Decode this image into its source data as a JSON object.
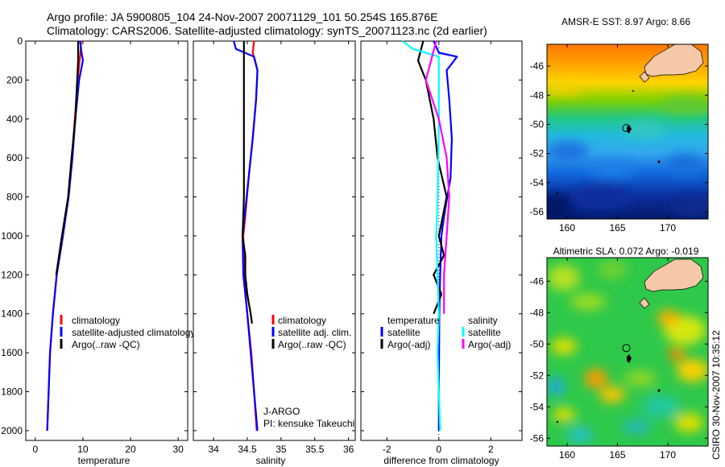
{
  "header": {
    "line1": "Argo profile: JA 5900805_104 24-Nov-2007 20071129_101 50.254S 165.876E",
    "line2": "Climatology: CARS2006. Satellite-adjusted climatology: synTS_20071123.nc (2d earlier)"
  },
  "credit": "CSIRO 30-Nov-2007 10:35:12",
  "colors": {
    "red": "#ff0000",
    "blue": "#0000ff",
    "black": "#000000",
    "cyan": "#00ffff",
    "magenta": "#ff00ff"
  },
  "chart_data": [
    {
      "type": "line",
      "xlabel": "temperature",
      "ylabel": "",
      "xlim": [
        -2,
        32
      ],
      "ylim": [
        2050,
        0
      ],
      "xticks": [
        0,
        10,
        20,
        30
      ],
      "yticks": [
        0,
        200,
        400,
        600,
        800,
        1000,
        1200,
        1400,
        1600,
        1800,
        2000
      ],
      "legend": {
        "entries": [
          "climatology",
          "satellite-adjusted climatology",
          "Argo(..raw -QC)"
        ]
      },
      "series": [
        {
          "name": "climatology",
          "color": "red",
          "points": [
            [
              9.6,
              0
            ],
            [
              9.5,
              50
            ],
            [
              9.3,
              100
            ],
            [
              8.9,
              200
            ],
            [
              8.3,
              400
            ],
            [
              7.7,
              600
            ],
            [
              6.9,
              800
            ],
            [
              5.8,
              1000
            ],
            [
              4.5,
              1200
            ],
            [
              3.7,
              1400
            ],
            [
              3.1,
              1600
            ],
            [
              2.8,
              1800
            ],
            [
              2.5,
              2000
            ]
          ]
        },
        {
          "name": "satellite-adjusted climatology",
          "color": "blue",
          "points": [
            [
              9.4,
              0
            ],
            [
              9.7,
              60
            ],
            [
              10.0,
              100
            ],
            [
              9.2,
              200
            ],
            [
              8.4,
              400
            ],
            [
              7.8,
              600
            ],
            [
              7.0,
              800
            ],
            [
              5.8,
              1000
            ],
            [
              4.5,
              1200
            ],
            [
              3.7,
              1400
            ],
            [
              3.1,
              1600
            ],
            [
              2.8,
              1800
            ],
            [
              2.5,
              2000
            ]
          ]
        },
        {
          "name": "Argo(..raw -QC)",
          "color": "black",
          "points": [
            [
              9.0,
              0
            ],
            [
              9.0,
              100
            ],
            [
              8.8,
              200
            ],
            [
              8.4,
              400
            ],
            [
              7.6,
              600
            ],
            [
              6.9,
              800
            ],
            [
              5.6,
              1000
            ],
            [
              4.4,
              1200
            ]
          ]
        }
      ]
    },
    {
      "type": "line",
      "xlabel": "salinity",
      "ylabel": "",
      "xlim": [
        33.7,
        36.1
      ],
      "ylim": [
        2050,
        0
      ],
      "xticks": [
        34,
        34.5,
        35,
        35.5,
        36
      ],
      "yticks": [
        0,
        200,
        400,
        600,
        800,
        1000,
        1200,
        1400,
        1600,
        1800,
        2000
      ],
      "legend": {
        "entries": [
          "climatology",
          "satellite adj. clim.",
          "Argo(..raw -QC)"
        ]
      },
      "annotations": [
        "J-ARGO",
        "PI: kensuke Takeuchi"
      ],
      "series": [
        {
          "name": "climatology",
          "color": "red",
          "points": [
            [
              34.6,
              0
            ],
            [
              34.58,
              60
            ],
            [
              34.65,
              150
            ],
            [
              34.63,
              300
            ],
            [
              34.58,
              500
            ],
            [
              34.52,
              700
            ],
            [
              34.47,
              900
            ],
            [
              34.44,
              1000
            ],
            [
              34.45,
              1200
            ],
            [
              34.5,
              1400
            ],
            [
              34.56,
              1600
            ],
            [
              34.6,
              1800
            ],
            [
              34.64,
              2000
            ]
          ]
        },
        {
          "name": "satellite adj. clim.",
          "color": "blue",
          "points": [
            [
              34.3,
              0
            ],
            [
              34.33,
              40
            ],
            [
              34.6,
              80
            ],
            [
              34.65,
              150
            ],
            [
              34.63,
              300
            ],
            [
              34.58,
              500
            ],
            [
              34.52,
              700
            ],
            [
              34.46,
              900
            ],
            [
              34.43,
              1000
            ],
            [
              34.44,
              1200
            ],
            [
              34.5,
              1400
            ],
            [
              34.55,
              1600
            ],
            [
              34.6,
              1800
            ],
            [
              34.65,
              2000
            ]
          ]
        },
        {
          "name": "Argo(..raw -QC)",
          "color": "black",
          "points": [
            [
              34.45,
              0
            ],
            [
              34.45,
              100
            ],
            [
              34.45,
              200
            ],
            [
              34.45,
              400
            ],
            [
              34.45,
              600
            ],
            [
              34.45,
              800
            ],
            [
              34.43,
              1000
            ],
            [
              34.47,
              1100
            ],
            [
              34.47,
              1200
            ],
            [
              34.5,
              1300
            ],
            [
              34.55,
              1400
            ],
            [
              34.57,
              1450
            ]
          ]
        }
      ]
    },
    {
      "type": "line",
      "xlabel": "difference from climatology",
      "ylabel": "",
      "xlim": [
        -3,
        3.2
      ],
      "ylim": [
        2050,
        0
      ],
      "xticks": [
        -2,
        0,
        2
      ],
      "yticks": [
        0,
        200,
        400,
        600,
        800,
        1000,
        1200,
        1400,
        1600,
        1800,
        2000
      ],
      "legend": {
        "entries": [
          {
            "group": "temperature",
            "label": "satellite"
          },
          {
            "group": "temperature",
            "label": "Argo(-adj)"
          },
          {
            "group": "salinity",
            "label": "satellite"
          },
          {
            "group": "salinity",
            "label": "Argo(-adj)"
          }
        ]
      },
      "series": [
        {
          "name": "temperature satellite",
          "color": "blue",
          "points": [
            [
              -0.2,
              0
            ],
            [
              0,
              60
            ],
            [
              0.7,
              80
            ],
            [
              0.3,
              150
            ],
            [
              0.4,
              300
            ],
            [
              0.5,
              500
            ],
            [
              0.45,
              700
            ],
            [
              0.2,
              900
            ],
            [
              0.1,
              1000
            ],
            [
              0.05,
              1200
            ],
            [
              0.02,
              1400
            ],
            [
              0.01,
              1600
            ],
            [
              0,
              1800
            ],
            [
              0,
              2000
            ]
          ]
        },
        {
          "name": "temperature Argo(-adj)",
          "color": "black",
          "points": [
            [
              -0.6,
              0
            ],
            [
              -0.8,
              100
            ],
            [
              -0.5,
              200
            ],
            [
              -0.2,
              400
            ],
            [
              -0.05,
              600
            ],
            [
              0.3,
              800
            ],
            [
              0,
              1000
            ],
            [
              0.2,
              1100
            ],
            [
              -0.2,
              1200
            ],
            [
              0.1,
              1300
            ],
            [
              -0.2,
              1400
            ]
          ]
        },
        {
          "name": "salinity satellite",
          "color": "cyan",
          "points": [
            [
              -1.4,
              0
            ],
            [
              -1.0,
              40
            ],
            [
              0,
              80
            ],
            [
              0,
              150
            ],
            [
              0,
              400
            ],
            [
              -0.05,
              800
            ],
            [
              -0.1,
              1000
            ],
            [
              -0.05,
              1200
            ],
            [
              0,
              1400
            ],
            [
              -0.05,
              1600
            ],
            [
              0,
              1800
            ],
            [
              0.05,
              2000
            ]
          ]
        },
        {
          "name": "salinity Argo(-adj)",
          "color": "magenta",
          "points": [
            [
              -0.1,
              0
            ],
            [
              -0.3,
              100
            ],
            [
              -0.5,
              200
            ],
            [
              0,
              400
            ],
            [
              0.3,
              600
            ],
            [
              0.4,
              800
            ],
            [
              0.3,
              1000
            ],
            [
              0.2,
              1200
            ],
            [
              0.2,
              1400
            ]
          ]
        }
      ]
    },
    {
      "type": "heatmap",
      "title": "AMSR-E SST: 8.97 Argo: 8.66",
      "xlim": [
        158,
        174
      ],
      "ylim": [
        -56.5,
        -44.5
      ],
      "xticks": [
        160,
        165,
        170
      ],
      "yticks": [
        -46,
        -48,
        -50,
        -52,
        -54,
        -56
      ],
      "marker": {
        "lon": 165.876,
        "lat": -50.254
      }
    },
    {
      "type": "heatmap",
      "title": "Altimetric SLA: 0.072 Argo: -0.019",
      "xlim": [
        158,
        174
      ],
      "ylim": [
        -56.5,
        -44.5
      ],
      "xticks": [
        160,
        165,
        170
      ],
      "yticks": [
        -46,
        -48,
        -50,
        -52,
        -54,
        -56
      ],
      "marker": {
        "lon": 165.876,
        "lat": -50.254
      }
    }
  ]
}
